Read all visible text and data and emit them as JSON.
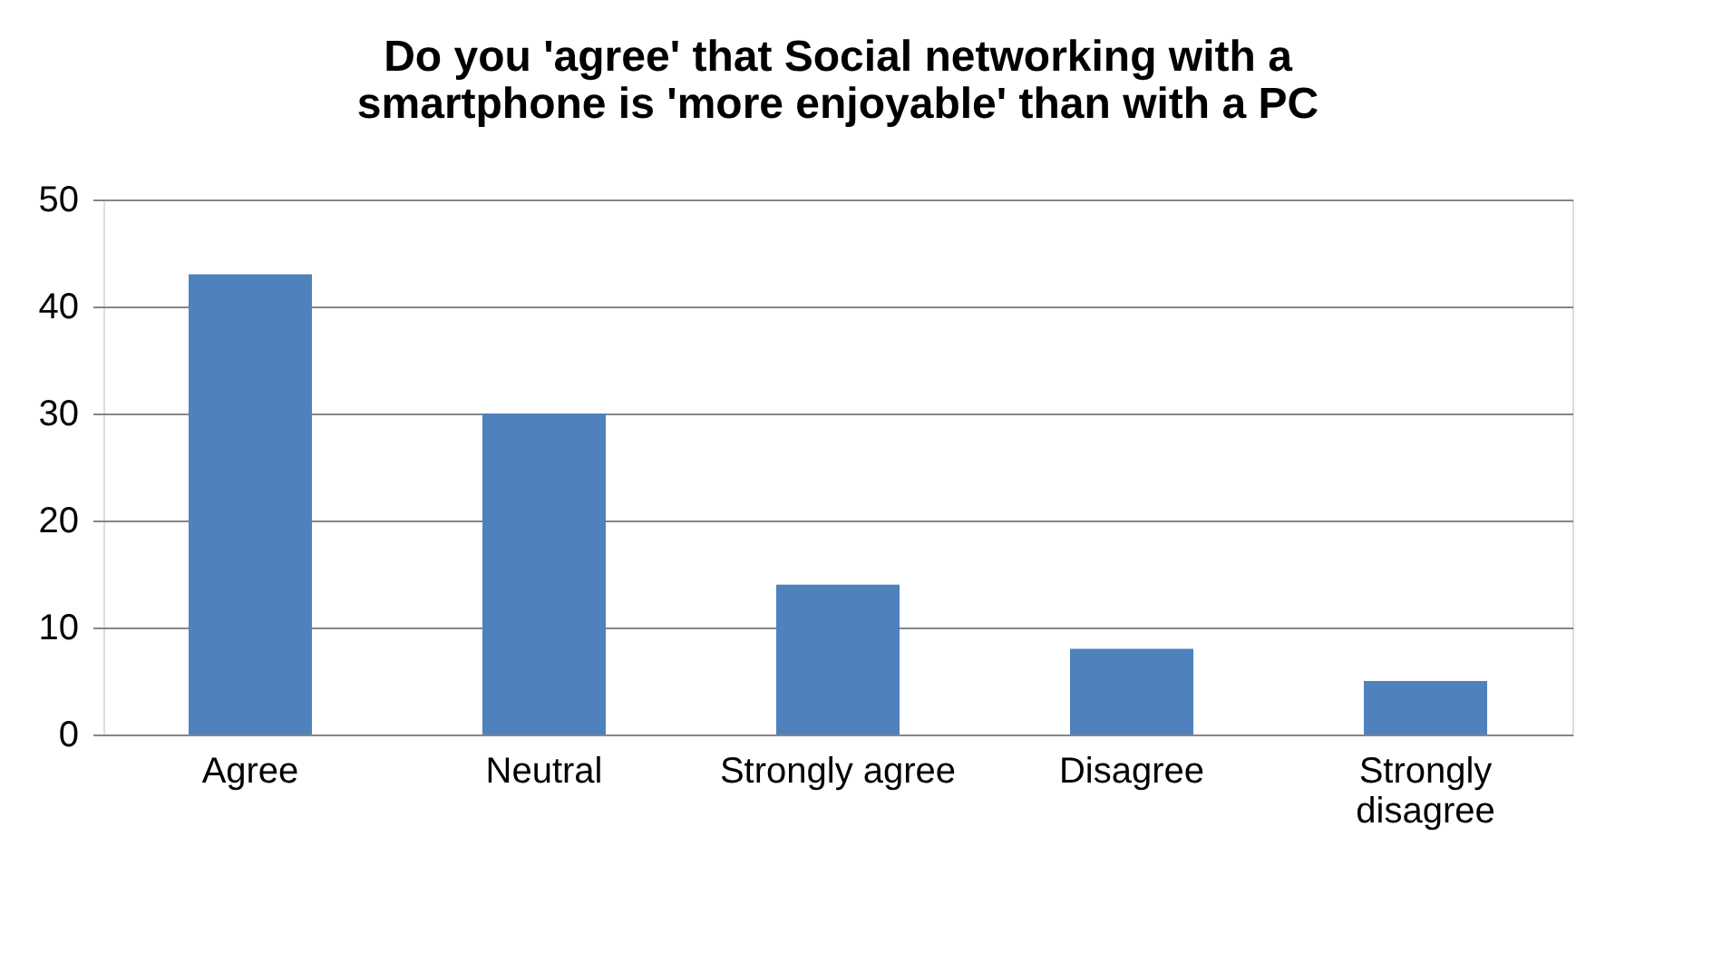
{
  "chart_data": {
    "type": "bar",
    "title": "Do you 'agree' that Social networking with a smartphone is 'more enjoyable' than with a PC",
    "categories": [
      "Agree",
      "Neutral",
      "Strongly agree",
      "Disagree",
      "Strongly disagree"
    ],
    "values": [
      43,
      30,
      14,
      8,
      5
    ],
    "color": "#4f81bd",
    "ylim": [
      0,
      50
    ],
    "yticks": [
      0,
      10,
      20,
      30,
      40,
      50
    ],
    "grid": "y"
  }
}
